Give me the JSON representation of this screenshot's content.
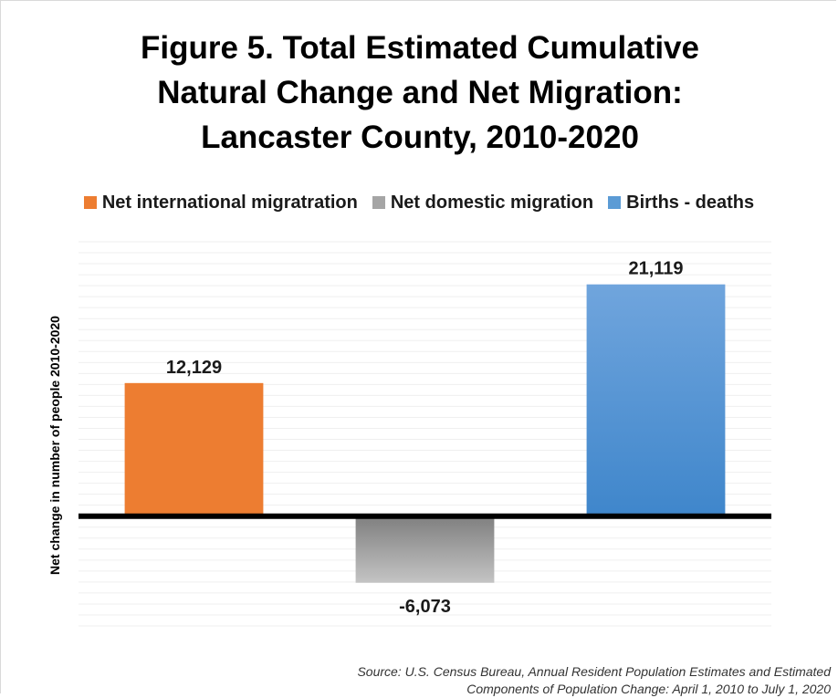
{
  "title_lines": [
    "Figure 5. Total Estimated Cumulative",
    "Natural Change and Net Migration:",
    "Lancaster County, 2010-2020"
  ],
  "legend": [
    {
      "label": "Net international migratration",
      "color": "#ED7D31"
    },
    {
      "label": "Net domestic migration",
      "color": "#A5A5A5"
    },
    {
      "label": "Births  - deaths",
      "color": "#5B9BD5"
    }
  ],
  "ylabel": "Net change in number of people 2010-2020",
  "source_lines": [
    "Source: U.S. Census Bureau, Annual Resident Population Estimates and Estimated",
    "Components of Population Change: April 1, 2010 to July 1, 2020"
  ],
  "chart_data": {
    "type": "bar",
    "title": "Figure 5. Total Estimated Cumulative Natural Change and Net Migration: Lancaster County, 2010-2020",
    "ylabel": "Net change in number of people 2010-2020",
    "categories": [
      "Net international migratration",
      "Net domestic migration",
      "Births  - deaths"
    ],
    "values": [
      12129,
      -6073,
      21119
    ],
    "value_labels": [
      "12,129",
      "-6,073",
      "21,119"
    ],
    "colors": [
      "#ED7D31",
      "#A5A5A5",
      "#5B9BD5"
    ],
    "ylim": [
      -10000,
      25000
    ],
    "grid": true,
    "legend": "top"
  }
}
